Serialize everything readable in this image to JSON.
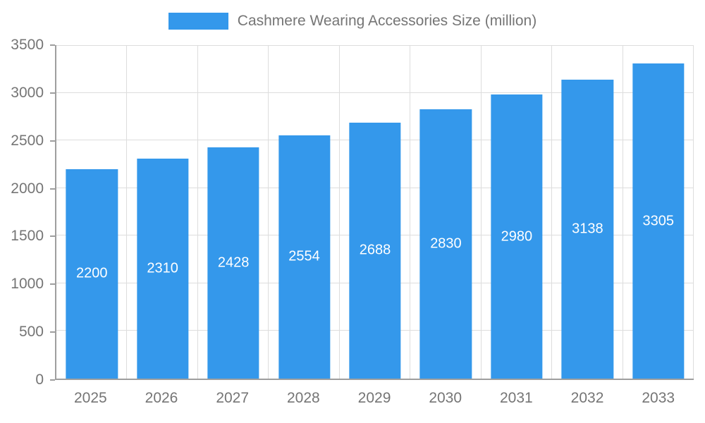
{
  "chart_data": {
    "type": "bar",
    "title": "Cashmere Wearing Accessories Size (million)",
    "categories": [
      "2025",
      "2026",
      "2027",
      "2028",
      "2029",
      "2030",
      "2031",
      "2032",
      "2033"
    ],
    "values": [
      2200,
      2310,
      2428,
      2554,
      2688,
      2830,
      2980,
      3138,
      3305
    ],
    "xlabel": "",
    "ylabel": "",
    "ylim": [
      0,
      3500
    ],
    "yticks": [
      0,
      500,
      1000,
      1500,
      2000,
      2500,
      3000,
      3500
    ],
    "grid": true,
    "legend_position": "top",
    "bar_labels_shown": true,
    "colors": {
      "bar": "#3498EB",
      "bar_label_text": "#FFFFFF",
      "axis_text": "#757575",
      "gridline": "#DDDDDD",
      "axis_line": "#9E9E9E",
      "background": "#FFFFFF"
    }
  }
}
